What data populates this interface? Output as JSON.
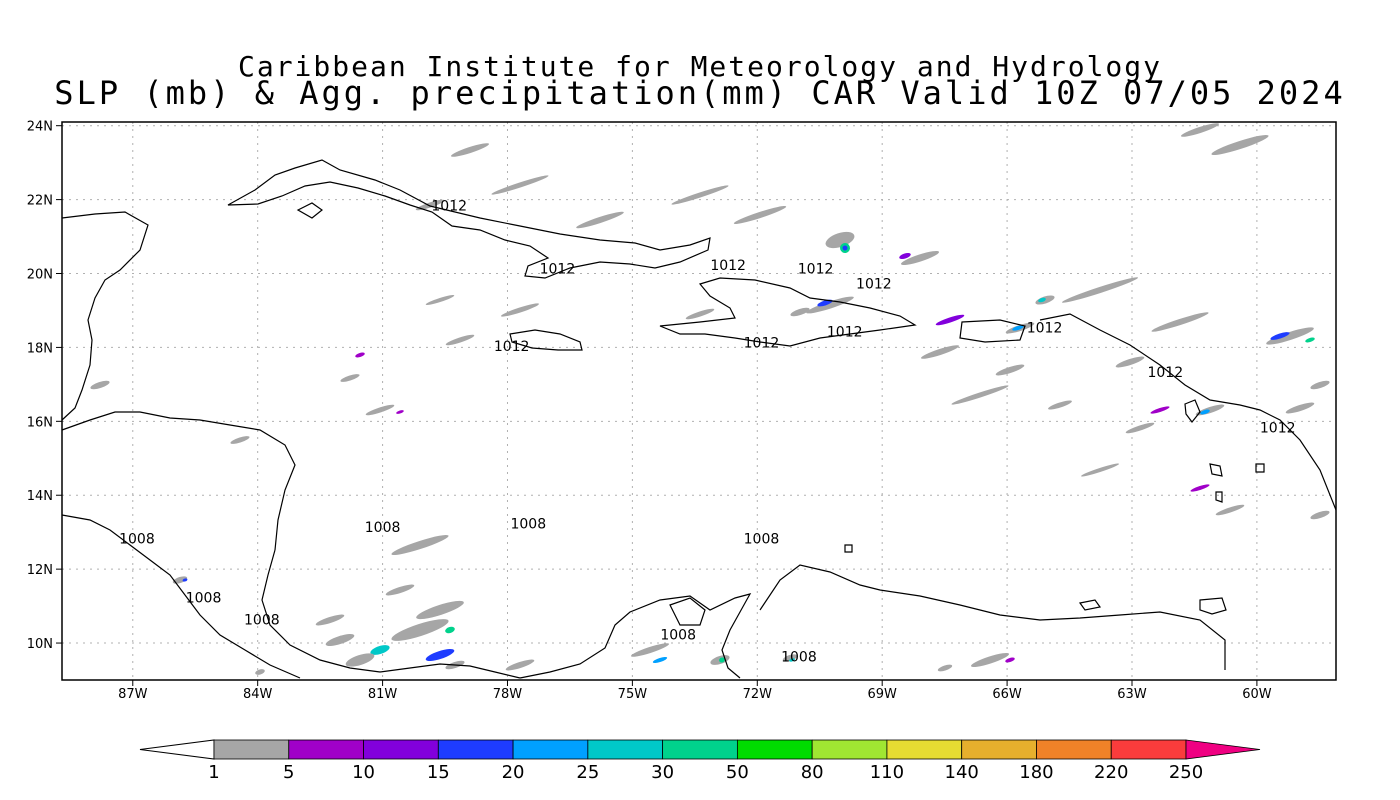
{
  "title": {
    "line1": "Caribbean Institute for Meteorology and Hydrology",
    "line2": "SLP (mb) & Agg. precipitation(mm) CAR Valid 10Z 07/05 2024"
  },
  "map": {
    "lon_range": [
      -88.7,
      -58.1
    ],
    "lat_range": [
      9.0,
      24.1
    ],
    "x_ticks": [
      {
        "lon": -87,
        "label": "87W"
      },
      {
        "lon": -84,
        "label": "84W"
      },
      {
        "lon": -81,
        "label": "81W"
      },
      {
        "lon": -78,
        "label": "78W"
      },
      {
        "lon": -75,
        "label": "75W"
      },
      {
        "lon": -72,
        "label": "72W"
      },
      {
        "lon": -69,
        "label": "69W"
      },
      {
        "lon": -66,
        "label": "66W"
      },
      {
        "lon": -63,
        "label": "63W"
      },
      {
        "lon": -60,
        "label": "60W"
      }
    ],
    "y_ticks": [
      {
        "lat": 10,
        "label": "10N"
      },
      {
        "lat": 12,
        "label": "12N"
      },
      {
        "lat": 14,
        "label": "14N"
      },
      {
        "lat": 16,
        "label": "16N"
      },
      {
        "lat": 18,
        "label": "18N"
      },
      {
        "lat": 20,
        "label": "20N"
      },
      {
        "lat": 22,
        "label": "22N"
      },
      {
        "lat": 24,
        "label": "24N"
      }
    ],
    "isobar_labels": [
      {
        "text": "1012",
        "lon": -79.4,
        "lat": 21.7
      },
      {
        "text": "1012",
        "lon": -76.8,
        "lat": 20.0
      },
      {
        "text": "1012",
        "lon": -72.7,
        "lat": 20.1
      },
      {
        "text": "1012",
        "lon": -70.6,
        "lat": 20.0
      },
      {
        "text": "1012",
        "lon": -69.2,
        "lat": 19.6
      },
      {
        "text": "1012",
        "lon": -69.9,
        "lat": 18.3
      },
      {
        "text": "1012",
        "lon": -71.9,
        "lat": 18.0
      },
      {
        "text": "1012",
        "lon": -77.9,
        "lat": 17.9
      },
      {
        "text": "1012",
        "lon": -65.1,
        "lat": 18.4
      },
      {
        "text": "1012",
        "lon": -62.2,
        "lat": 17.2
      },
      {
        "text": "1012",
        "lon": -59.5,
        "lat": 15.7
      },
      {
        "text": "1008",
        "lon": -81.0,
        "lat": 13.0
      },
      {
        "text": "1008",
        "lon": -77.5,
        "lat": 13.1
      },
      {
        "text": "1008",
        "lon": -71.9,
        "lat": 12.7
      },
      {
        "text": "1008",
        "lon": -86.9,
        "lat": 12.7
      },
      {
        "text": "1008",
        "lon": -85.3,
        "lat": 11.1
      },
      {
        "text": "1008",
        "lon": -83.9,
        "lat": 10.5
      },
      {
        "text": "1008",
        "lon": -73.9,
        "lat": 10.1
      },
      {
        "text": "1008",
        "lon": -71.0,
        "lat": 9.5
      }
    ]
  },
  "colorbar": {
    "labels": [
      "1",
      "5",
      "10",
      "15",
      "20",
      "25",
      "30",
      "50",
      "80",
      "110",
      "140",
      "180",
      "220",
      "250"
    ],
    "colors": [
      "#a6a6a6",
      "#a000c8",
      "#8200dc",
      "#1e3cff",
      "#00a0ff",
      "#00c8c8",
      "#00d28c",
      "#00dc00",
      "#a0e632",
      "#e6dc32",
      "#e6af2d",
      "#f08228",
      "#fa3c3c",
      "#f00082"
    ]
  }
}
